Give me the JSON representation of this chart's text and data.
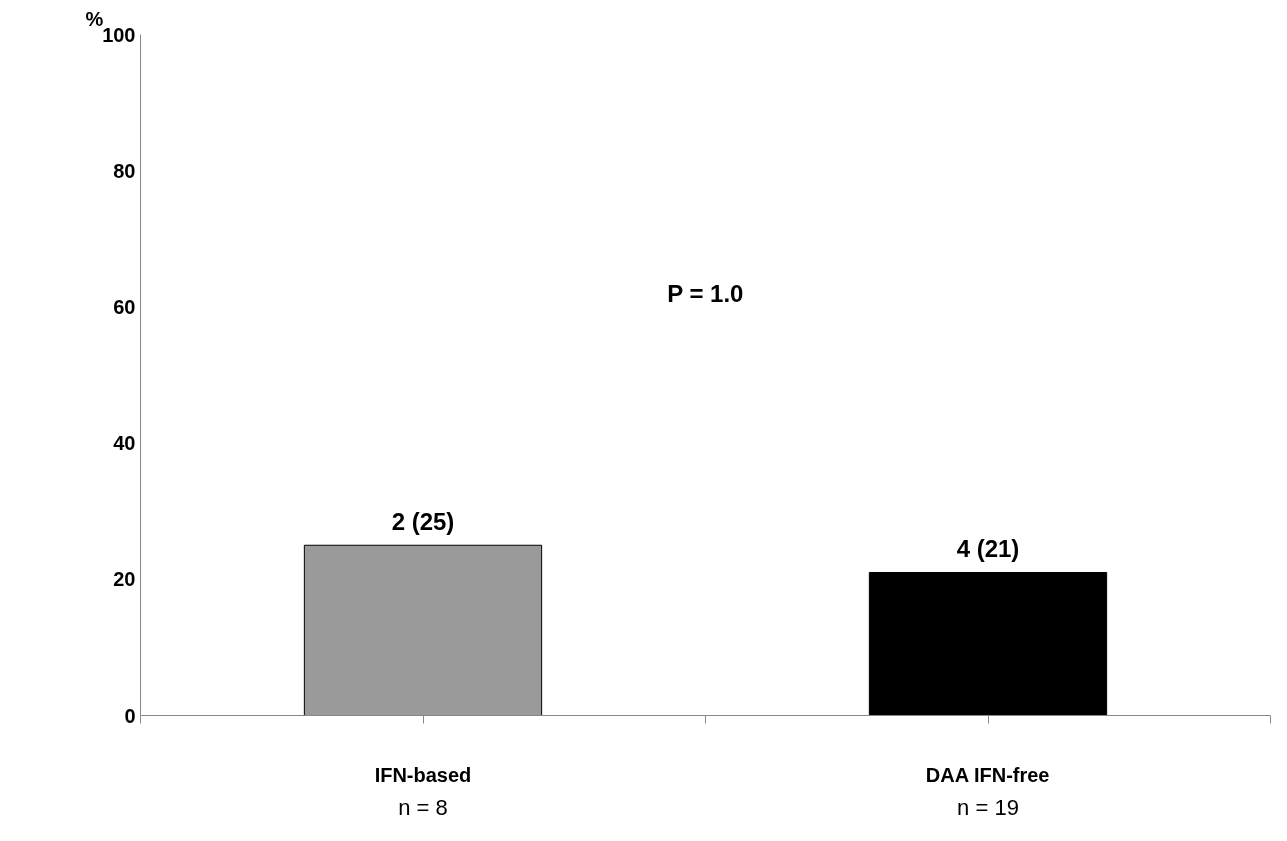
{
  "chart_data": {
    "type": "bar",
    "ylabel": "%",
    "categories": [
      "IFN-based",
      "DAA IFN-free"
    ],
    "values": [
      25,
      21
    ],
    "colors": [
      "#9a9a9a",
      "#000000"
    ],
    "value_labels": [
      "2 (25)",
      "4 (21)"
    ],
    "ylim": [
      0,
      100
    ],
    "yticks": [
      0,
      20,
      40,
      60,
      80,
      100
    ],
    "grid": false,
    "annotations": [
      "P = 1.0",
      "n = 8",
      "n = 19"
    ]
  }
}
